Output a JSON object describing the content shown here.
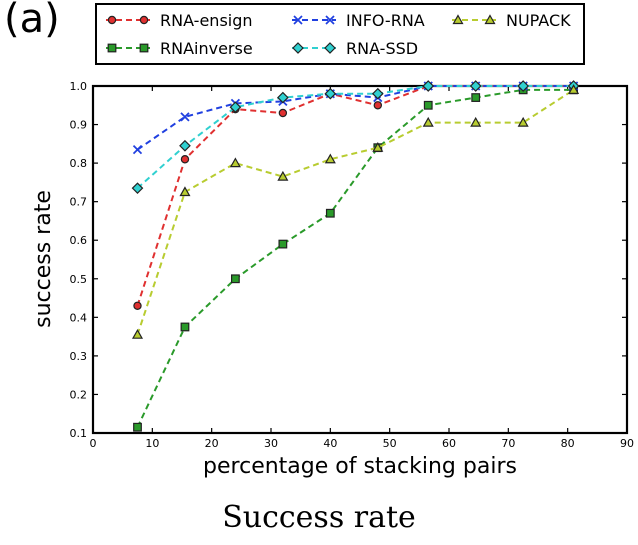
{
  "panel_label": "(a)",
  "caption": "Success rate",
  "chart_data": {
    "type": "line",
    "title": "",
    "xlabel": "percentage of stacking pairs",
    "ylabel": "success rate",
    "xlim": [
      0,
      90
    ],
    "ylim": [
      0.1,
      1.0
    ],
    "xticks": [
      "0",
      "10",
      "20",
      "30",
      "40",
      "50",
      "60",
      "70",
      "80",
      "90"
    ],
    "yticks": [
      "0.1",
      "0.2",
      "0.3",
      "0.4",
      "0.5",
      "0.6",
      "0.7",
      "0.8",
      "0.9",
      "1.0"
    ],
    "grid": false,
    "legend_position": "top",
    "series": [
      {
        "name": "RNA-ensign",
        "color": "#e03030",
        "marker": "circle",
        "x": [
          7.5,
          15.5,
          24,
          32,
          40,
          48,
          56.5,
          64.5,
          72.5,
          81
        ],
        "y": [
          0.43,
          0.81,
          0.94,
          0.93,
          0.98,
          0.95,
          1.0,
          1.0,
          1.0,
          1.0
        ]
      },
      {
        "name": "RNAinverse",
        "color": "#2a9a2a",
        "marker": "square",
        "x": [
          7.5,
          15.5,
          24,
          32,
          40,
          48,
          56.5,
          64.5,
          72.5,
          81
        ],
        "y": [
          0.115,
          0.375,
          0.5,
          0.59,
          0.67,
          0.84,
          0.95,
          0.97,
          0.99,
          0.99
        ]
      },
      {
        "name": "INFO-RNA",
        "color": "#2040e0",
        "marker": "x",
        "x": [
          7.5,
          15.5,
          24,
          32,
          40,
          48,
          56.5,
          64.5,
          72.5,
          81
        ],
        "y": [
          0.835,
          0.92,
          0.955,
          0.96,
          0.98,
          0.97,
          1.0,
          1.0,
          1.0,
          1.0
        ]
      },
      {
        "name": "RNA-SSD",
        "color": "#30d0d0",
        "marker": "diamond",
        "x": [
          7.5,
          15.5,
          24,
          32,
          40,
          48,
          56.5,
          64.5,
          72.5,
          81
        ],
        "y": [
          0.735,
          0.845,
          0.945,
          0.97,
          0.98,
          0.98,
          1.0,
          1.0,
          1.0,
          1.0
        ]
      },
      {
        "name": "NUPACK",
        "color": "#b8cc30",
        "marker": "triangle",
        "x": [
          7.5,
          15.5,
          24,
          32,
          40,
          48,
          56.5,
          64.5,
          72.5,
          81
        ],
        "y": [
          0.355,
          0.725,
          0.8,
          0.765,
          0.81,
          0.84,
          0.905,
          0.905,
          0.905,
          0.99
        ]
      }
    ]
  }
}
